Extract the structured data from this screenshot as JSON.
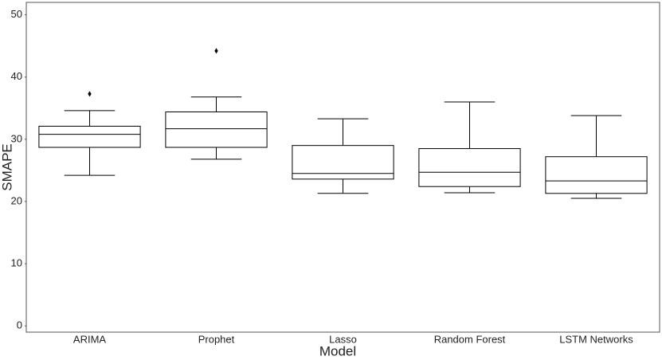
{
  "chart_data": {
    "type": "box",
    "x_label": "Model",
    "y_label": "SMAPE",
    "categories": [
      "ARIMA",
      "Prophet",
      "Lasso",
      "Random Forest",
      "LSTM Networks"
    ],
    "boxes": [
      {
        "low": 24.2,
        "q1": 28.7,
        "median": 30.8,
        "q3": 32.1,
        "high": 34.6,
        "outliers": [
          37.3
        ]
      },
      {
        "low": 26.8,
        "q1": 28.7,
        "median": 31.7,
        "q3": 34.4,
        "high": 36.8,
        "outliers": [
          44.2
        ]
      },
      {
        "low": 21.3,
        "q1": 23.6,
        "median": 24.5,
        "q3": 29.0,
        "high": 33.3
      },
      {
        "low": 21.4,
        "q1": 22.4,
        "median": 24.7,
        "q3": 28.5,
        "high": 36.0
      },
      {
        "low": 20.5,
        "q1": 21.3,
        "median": 23.3,
        "q3": 27.2,
        "high": 33.8
      }
    ],
    "color": "#000000",
    "ylim": [
      -1,
      52
    ],
    "yticks": [
      0,
      10,
      20,
      30,
      40,
      50
    ],
    "grid": false
  }
}
